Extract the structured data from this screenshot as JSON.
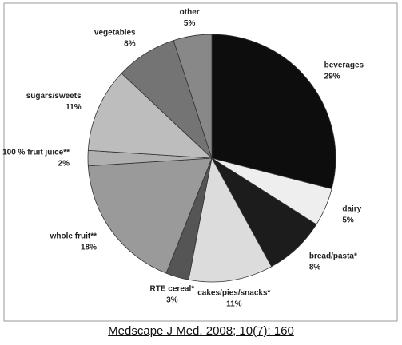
{
  "chart_data": {
    "type": "pie",
    "categories": [
      "beverages",
      "dairy",
      "bread/pasta*",
      "cakes/pies/snacks*",
      "RTE cereal*",
      "whole fruit**",
      "100 % fruit juice**",
      "sugars/sweets",
      "vegetables",
      "other"
    ],
    "values": [
      29,
      5,
      8,
      11,
      3,
      18,
      2,
      11,
      8,
      5
    ],
    "value_labels": [
      "29%",
      "5%",
      "8%",
      "11%",
      "3%",
      "18%",
      "2%",
      "11%",
      "8%",
      "5%"
    ],
    "colors": [
      "#0d0d0d",
      "#eeeeee",
      "#1c1c1c",
      "#dcdcdc",
      "#555555",
      "#9a9a9a",
      "#b0b0b0",
      "#bdbdbd",
      "#747474",
      "#888888"
    ],
    "caption": "Medscape J Med. 2008; 10(7): 160"
  }
}
